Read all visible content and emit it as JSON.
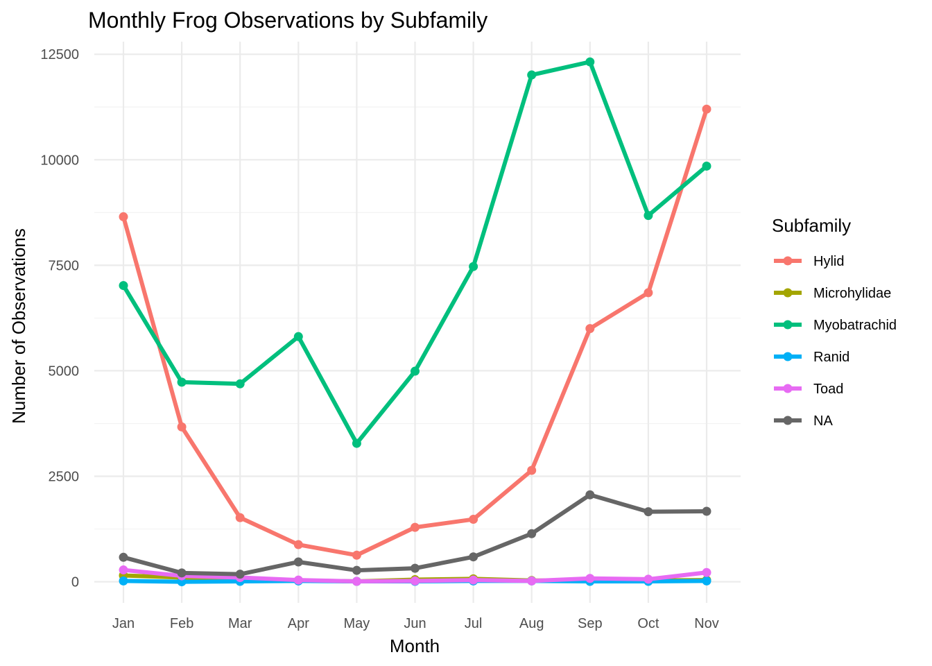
{
  "chart_data": {
    "type": "line",
    "title": "Monthly Frog Observations by Subfamily",
    "xlabel": "Month",
    "ylabel": "Number of Observations",
    "categories": [
      "Jan",
      "Feb",
      "Mar",
      "Apr",
      "May",
      "Jun",
      "Jul",
      "Aug",
      "Sep",
      "Oct",
      "Nov"
    ],
    "ylim": [
      -500,
      12800
    ],
    "yticks": [
      0,
      2500,
      5000,
      7500,
      10000,
      12500
    ],
    "ytick_labels": [
      "0",
      "2500",
      "5000",
      "7500",
      "10000",
      "12500"
    ],
    "grid": true,
    "legend": {
      "title": "Subfamily",
      "placement": "right"
    },
    "series": [
      {
        "name": "Hylid",
        "color": "#F8766D",
        "values": [
          8650,
          3670,
          1520,
          880,
          630,
          1290,
          1480,
          2640,
          6000,
          6850,
          11200
        ]
      },
      {
        "name": "Microhylidae",
        "color": "#A3A500",
        "values": [
          150,
          100,
          60,
          30,
          10,
          50,
          70,
          30,
          30,
          30,
          40
        ]
      },
      {
        "name": "Myobatrachid",
        "color": "#00BF7D",
        "values": [
          7020,
          4730,
          4690,
          5810,
          3280,
          4990,
          7470,
          12010,
          12320,
          8680,
          9850
        ]
      },
      {
        "name": "Ranid",
        "color": "#00B0F6",
        "values": [
          20,
          0,
          10,
          20,
          10,
          10,
          20,
          20,
          10,
          10,
          20
        ]
      },
      {
        "name": "Toad",
        "color": "#E76BF3",
        "values": [
          280,
          140,
          100,
          40,
          10,
          20,
          40,
          20,
          80,
          60,
          220
        ]
      },
      {
        "name": "NA",
        "color": "#666666",
        "values": [
          580,
          210,
          180,
          470,
          270,
          320,
          590,
          1140,
          2060,
          1660,
          1670
        ]
      }
    ]
  }
}
